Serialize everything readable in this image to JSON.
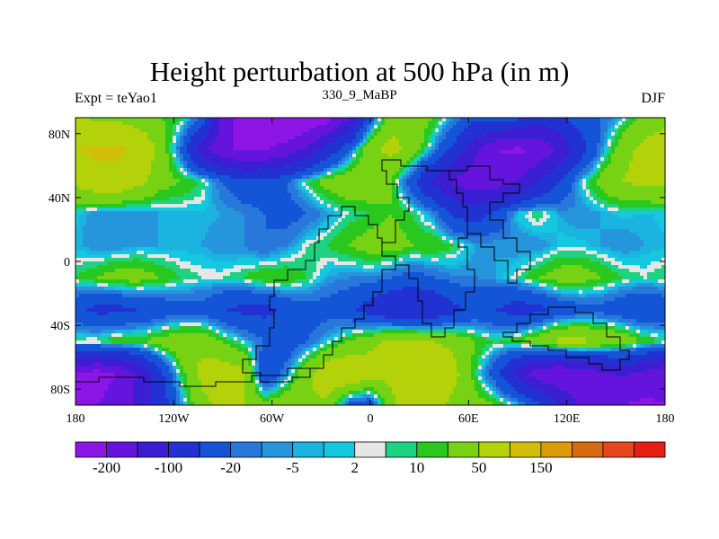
{
  "figure": {
    "title": "Height perturbation at 500 hPa (in m)",
    "left_label": "Expt = teYao1",
    "center_label": "330_9_MaBP",
    "right_label": "DJF"
  },
  "chart_data": {
    "type": "heatmap",
    "variable": "Height perturbation at 500 hPa",
    "units": "m",
    "x_range": [
      -180,
      180
    ],
    "y_range": [
      -90,
      90
    ],
    "lon_tick_labels": [
      "180",
      "120W",
      "60W",
      "0",
      "60E",
      "120E",
      "180"
    ],
    "lat_tick_labels": [
      "80N",
      "40N",
      "0",
      "40S",
      "80S"
    ],
    "colorbar_levels": [
      -200,
      -150,
      -100,
      -50,
      -20,
      -10,
      -5,
      -2,
      2,
      5,
      10,
      20,
      50,
      100,
      150,
      200
    ],
    "colorbar_tick_labels": [
      "-200",
      "-100",
      "-20",
      "-5",
      "2",
      "10",
      "50",
      "150"
    ],
    "colorbar_colors": [
      "#8d16e6",
      "#6414dc",
      "#3c1ed2",
      "#2232d2",
      "#1455d8",
      "#2878dc",
      "#2596dc",
      "#1bb4e0",
      "#14c8e0",
      "#e6e6e6",
      "#1ed282",
      "#28c81e",
      "#78d214",
      "#b4d20a",
      "#d2be0a",
      "#dc9b0a",
      "#d7690f",
      "#e6461e",
      "#e61e14"
    ],
    "grid_values": [
      [
        60,
        40,
        40,
        30,
        20,
        10,
        -20,
        -160,
        -230,
        -260,
        -260,
        -250,
        -220,
        -150,
        -30,
        40,
        40,
        20,
        -10,
        -40,
        -20,
        -40,
        -80,
        -60,
        -30,
        -20,
        0,
        30,
        40
      ],
      [
        100,
        110,
        110,
        90,
        40,
        -20,
        -130,
        -190,
        -210,
        -200,
        -180,
        -140,
        -80,
        -20,
        40,
        60,
        40,
        -10,
        -60,
        -140,
        -200,
        -210,
        -190,
        -140,
        -70,
        -10,
        40,
        60,
        70
      ],
      [
        60,
        80,
        80,
        60,
        30,
        20,
        10,
        -20,
        -40,
        -40,
        -20,
        10,
        30,
        40,
        40,
        20,
        -40,
        -110,
        -160,
        -180,
        -180,
        -150,
        -100,
        -50,
        0,
        30,
        50,
        60,
        60
      ],
      [
        0,
        -10,
        -10,
        -10,
        -5,
        -3,
        -3,
        -5,
        -10,
        -20,
        -30,
        -20,
        -5,
        5,
        10,
        20,
        10,
        -10,
        -60,
        -70,
        -40,
        0,
        10,
        -5,
        -10,
        -5,
        0,
        -3,
        0
      ],
      [
        -3,
        -10,
        -10,
        -5,
        -5,
        -5,
        -5,
        -10,
        -10,
        -20,
        -10,
        5,
        10,
        20,
        30,
        30,
        20,
        20,
        10,
        -5,
        -5,
        -10,
        -10,
        0,
        0,
        -5,
        -10,
        -5,
        -3
      ],
      [
        10,
        20,
        30,
        30,
        20,
        10,
        5,
        5,
        10,
        20,
        20,
        10,
        -5,
        -10,
        -10,
        -20,
        -30,
        -20,
        -10,
        -10,
        -5,
        5,
        20,
        30,
        30,
        20,
        10,
        5,
        10
      ],
      [
        -40,
        -60,
        -60,
        -50,
        -40,
        -30,
        -30,
        -50,
        -60,
        -60,
        -40,
        -30,
        -30,
        -40,
        -70,
        -90,
        -100,
        -90,
        -60,
        -40,
        -50,
        -70,
        -60,
        -40,
        -30,
        -30,
        -40,
        -50,
        -40
      ],
      [
        10,
        10,
        20,
        20,
        30,
        40,
        40,
        20,
        0,
        -20,
        -40,
        -20,
        0,
        20,
        40,
        60,
        60,
        50,
        40,
        20,
        10,
        20,
        40,
        60,
        60,
        50,
        40,
        20,
        10
      ],
      [
        -200,
        -220,
        -200,
        -140,
        -60,
        10,
        60,
        70,
        60,
        -50,
        -10,
        40,
        80,
        90,
        70,
        60,
        70,
        90,
        60,
        10,
        -40,
        -120,
        -180,
        -200,
        -180,
        -160,
        -140,
        -160,
        -190
      ],
      [
        -200,
        -200,
        -180,
        -140,
        -80,
        -10,
        40,
        60,
        50,
        30,
        40,
        50,
        40,
        -30,
        -40,
        40,
        80,
        60,
        40,
        30,
        20,
        0,
        -40,
        -100,
        -160,
        -200,
        -200,
        -210,
        -200
      ]
    ]
  },
  "continent_outline_fraction": 0.6,
  "colors": {
    "coastline": "#000000",
    "background": "#ffffff",
    "zero_band": "#e6e6e6"
  }
}
